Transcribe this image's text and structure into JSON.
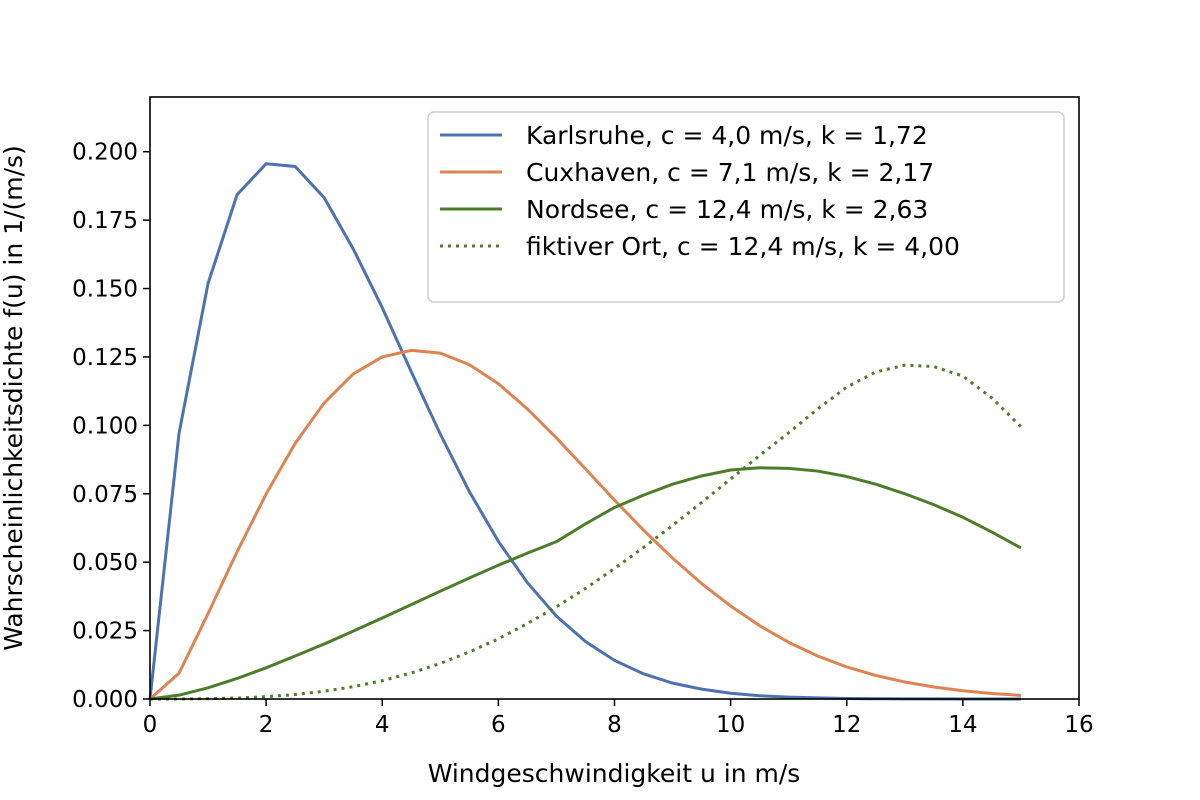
{
  "chart_data": {
    "type": "line",
    "xlabel": "Windgeschwindigkeit u in m/s",
    "ylabel": "Wahrscheinlichkeitsdichte f(u) in 1/(m/s)",
    "xlim": [
      0,
      16
    ],
    "ylim": [
      0,
      0.22
    ],
    "x_ticks": [
      0,
      2,
      4,
      6,
      8,
      10,
      12,
      14,
      16
    ],
    "y_ticks": [
      0.0,
      0.025,
      0.05,
      0.075,
      0.1,
      0.125,
      0.15,
      0.175,
      0.2
    ],
    "x_tick_labels": [
      "0",
      "2",
      "4",
      "6",
      "8",
      "10",
      "12",
      "14",
      "16"
    ],
    "y_tick_labels": [
      "0.000",
      "0.025",
      "0.050",
      "0.075",
      "0.100",
      "0.125",
      "0.150",
      "0.175",
      "0.200"
    ],
    "grid": false,
    "legend_position": "upper right",
    "x": [
      0,
      0.5,
      1,
      1.5,
      2,
      2.5,
      3,
      3.5,
      4,
      4.5,
      5,
      5.5,
      6,
      6.5,
      7,
      7.5,
      8,
      8.5,
      9,
      9.5,
      10,
      10.5,
      11,
      11.5,
      12,
      12.5,
      13,
      13.5,
      14,
      14.5,
      15
    ],
    "series": [
      {
        "name": "Karlsruhe, c = 4,0 m/s, k = 1,72",
        "color": "#4c72b0",
        "style": "solid",
        "values": [
          0,
          0.0971,
          0.1519,
          0.1843,
          0.1956,
          0.1946,
          0.1832,
          0.1645,
          0.143,
          0.1196,
          0.0968,
          0.0758,
          0.0576,
          0.0425,
          0.0303,
          0.021,
          0.0141,
          0.0092,
          0.0058,
          0.0036,
          0.0021,
          0.0012,
          0.0007,
          0.0004,
          0.0002,
          0.0001,
          5e-05,
          3e-05,
          1e-05,
          1e-05,
          0
        ]
      },
      {
        "name": "Cuxhaven,  c = 7,1 m/s, k = 2,17",
        "color": "#dd8452",
        "style": "solid",
        "values": [
          0,
          0.0094,
          0.0312,
          0.0538,
          0.0749,
          0.0934,
          0.1082,
          0.1188,
          0.125,
          0.1274,
          0.1264,
          0.1222,
          0.1152,
          0.106,
          0.0954,
          0.0841,
          0.0727,
          0.0617,
          0.0515,
          0.0422,
          0.034,
          0.0268,
          0.0207,
          0.0157,
          0.0117,
          0.0086,
          0.0062,
          0.0044,
          0.003,
          0.002,
          0.0013
        ]
      },
      {
        "name": "Nordsee,   c = 12,4 m/s, k = 2,63",
        "color": "#4e7d2a",
        "style": "solid",
        "values": [
          0,
          0.0014,
          0.0041,
          0.0075,
          0.0114,
          0.0157,
          0.0201,
          0.0248,
          0.0296,
          0.0345,
          0.0394,
          0.0442,
          0.0489,
          0.0533,
          0.0575,
          0.064,
          0.07,
          0.0745,
          0.0785,
          0.0815,
          0.0837,
          0.0845,
          0.0843,
          0.0833,
          0.0813,
          0.0785,
          0.075,
          0.071,
          0.0664,
          0.061,
          0.0552
        ]
      },
      {
        "name": "fiktiver Ort, c = 12,4 m/s, k = 4,00",
        "color": "#4e7d2a",
        "style": "dotted",
        "values": [
          0,
          1e-05,
          0.00011,
          0.00036,
          0.00084,
          0.00165,
          0.00284,
          0.0045,
          0.0067,
          0.00953,
          0.013,
          0.0172,
          0.022,
          0.0276,
          0.0337,
          0.0404,
          0.0477,
          0.0554,
          0.0634,
          0.0718,
          0.0804,
          0.089,
          0.0973,
          0.106,
          0.114,
          0.1195,
          0.122,
          0.1215,
          0.118,
          0.11,
          0.0995
        ]
      }
    ]
  }
}
